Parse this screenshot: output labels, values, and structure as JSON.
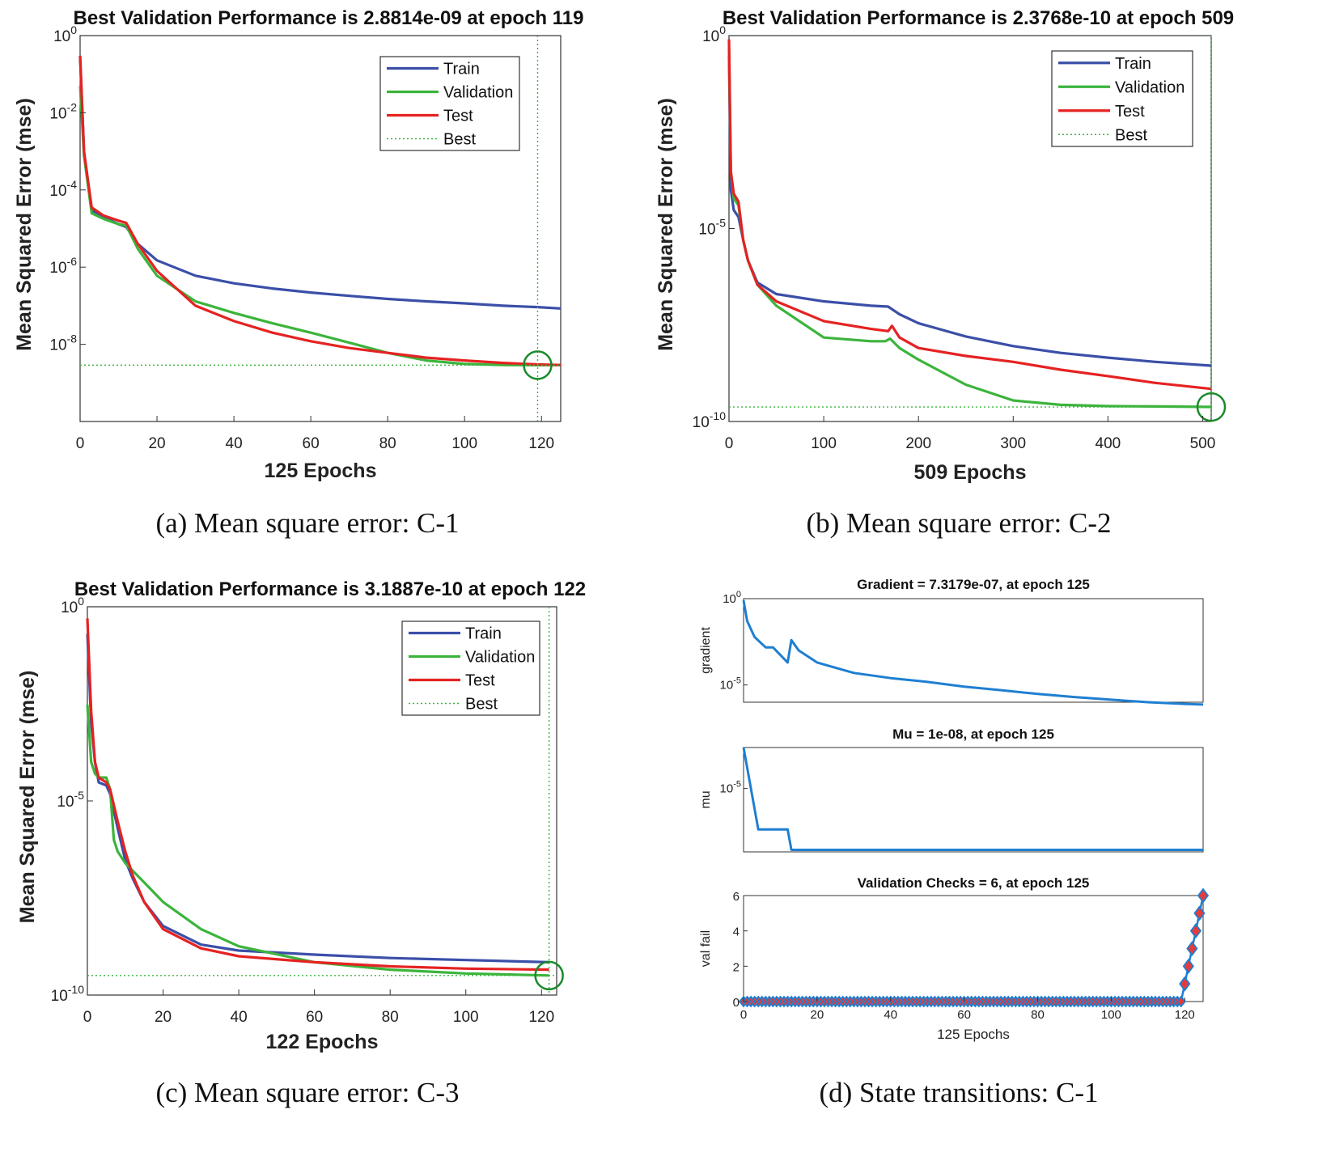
{
  "chart_data": [
    {
      "id": "a",
      "type": "line",
      "yscale": "log",
      "title": "Best Validation Performance is 2.8814e-09 at epoch 119",
      "xlabel": "125 Epochs",
      "ylabel": "Mean Squared Error  (mse)",
      "caption": "(a) Mean square error: C-1",
      "xlim": [
        0,
        125
      ],
      "ylim_exp": [
        -10,
        0
      ],
      "xticks": [
        0,
        20,
        40,
        60,
        80,
        100,
        120
      ],
      "yticks_exp": [
        -8,
        -6,
        -4,
        -2,
        0
      ],
      "legend": [
        "Train",
        "Validation",
        "Test",
        "Best"
      ],
      "series": [
        {
          "name": "Train",
          "color": "#3b4fa8",
          "x": [
            0,
            1,
            3,
            6,
            10,
            12,
            15,
            20,
            30,
            40,
            50,
            60,
            70,
            80,
            90,
            100,
            110,
            119,
            125
          ],
          "y": [
            0.3,
            0.001,
            3e-05,
            2e-05,
            1.3e-05,
            1.1e-05,
            4e-06,
            1.5e-06,
            6e-07,
            3.8e-07,
            2.8e-07,
            2.2e-07,
            1.8e-07,
            1.5e-07,
            1.3e-07,
            1.15e-07,
            1e-07,
            9.2e-08,
            8.5e-08
          ]
        },
        {
          "name": "Validation",
          "color": "#3cb43c",
          "x": [
            0,
            1,
            3,
            6,
            10,
            12,
            15,
            20,
            30,
            40,
            50,
            60,
            70,
            80,
            90,
            100,
            110,
            119,
            125
          ],
          "y": [
            0.05,
            0.0008,
            2.5e-05,
            1.8e-05,
            1.3e-05,
            1.2e-05,
            3e-06,
            6e-07,
            1.3e-07,
            6.5e-08,
            3.5e-08,
            2e-08,
            1.1e-08,
            6e-09,
            3.8e-09,
            3.1e-09,
            2.9e-09,
            2.88e-09,
            2.9e-09
          ]
        },
        {
          "name": "Test",
          "color": "#e52222",
          "x": [
            0,
            1,
            3,
            6,
            10,
            12,
            15,
            20,
            30,
            40,
            50,
            60,
            70,
            80,
            90,
            100,
            110,
            119,
            125
          ],
          "y": [
            0.3,
            0.001,
            3.5e-05,
            2.2e-05,
            1.6e-05,
            1.4e-05,
            4e-06,
            8e-07,
            1e-07,
            4e-08,
            2e-08,
            1.2e-08,
            8e-09,
            6e-09,
            4.5e-09,
            3.8e-09,
            3.3e-09,
            3e-09,
            2.9e-09
          ]
        }
      ],
      "best": {
        "epoch": 119,
        "value": 2.8814e-09
      }
    },
    {
      "id": "b",
      "type": "line",
      "yscale": "log",
      "title": "Best Validation Performance is 2.3768e-10 at epoch 509",
      "xlabel": "509 Epochs",
      "ylabel": "Mean Squared Error  (mse)",
      "caption": "(b) Mean square error: C-2",
      "xlim": [
        0,
        509
      ],
      "ylim_exp": [
        -10,
        0
      ],
      "xticks": [
        0,
        100,
        200,
        300,
        400,
        500
      ],
      "yticks_exp": [
        -10,
        -5,
        0
      ],
      "legend": [
        "Train",
        "Validation",
        "Test",
        "Best"
      ],
      "series": [
        {
          "name": "Train",
          "color": "#3b4fa8",
          "x": [
            0,
            2,
            5,
            10,
            15,
            20,
            30,
            50,
            100,
            150,
            168,
            180,
            200,
            250,
            300,
            350,
            400,
            450,
            509
          ],
          "y": [
            0.3,
            0.0001,
            3e-05,
            2e-05,
            5e-06,
            1.5e-06,
            4e-07,
            2e-07,
            1.3e-07,
            1e-07,
            9.5e-08,
            6e-08,
            3.5e-08,
            1.6e-08,
            9e-09,
            6e-09,
            4.5e-09,
            3.5e-09,
            2.8e-09
          ]
        },
        {
          "name": "Validation",
          "color": "#3cb43c",
          "x": [
            0,
            2,
            5,
            10,
            15,
            20,
            30,
            50,
            100,
            150,
            165,
            170,
            180,
            200,
            250,
            300,
            350,
            400,
            450,
            509
          ],
          "y": [
            0.5,
            0.0003,
            6e-05,
            4e-05,
            5e-06,
            1.5e-06,
            3.5e-07,
            1e-07,
            1.5e-08,
            1.2e-08,
            1.2e-08,
            1.4e-08,
            8e-09,
            4e-09,
            9e-10,
            3.5e-10,
            2.7e-10,
            2.5e-10,
            2.45e-10,
            2.38e-10
          ]
        },
        {
          "name": "Test",
          "color": "#e52222",
          "x": [
            0,
            2,
            5,
            10,
            15,
            20,
            30,
            50,
            100,
            150,
            168,
            172,
            180,
            200,
            250,
            300,
            350,
            400,
            450,
            509
          ],
          "y": [
            0.8,
            0.0003,
            8e-05,
            5e-05,
            5e-06,
            1.5e-06,
            3.5e-07,
            1.3e-07,
            4e-08,
            2.5e-08,
            2.2e-08,
            3e-08,
            1.5e-08,
            8e-09,
            5e-09,
            3.5e-09,
            2.2e-09,
            1.5e-09,
            1e-09,
            7e-10
          ]
        }
      ],
      "best": {
        "epoch": 509,
        "value": 2.3768e-10
      }
    },
    {
      "id": "c",
      "type": "line",
      "yscale": "log",
      "title": "Best Validation Performance is 3.1887e-10 at epoch 122",
      "xlabel": "122 Epochs",
      "ylabel": "Mean Squared Error  (mse)",
      "caption": "(c) Mean square error: C-3",
      "xlim": [
        0,
        124
      ],
      "ylim_exp": [
        -10,
        0
      ],
      "xticks": [
        0,
        20,
        40,
        60,
        80,
        100,
        120
      ],
      "yticks_exp": [
        -10,
        -5,
        0
      ],
      "legend": [
        "Train",
        "Validation",
        "Test",
        "Best"
      ],
      "series": [
        {
          "name": "Train",
          "color": "#3b4fa8",
          "x": [
            0,
            1,
            2,
            3,
            5,
            6,
            8,
            10,
            12,
            15,
            20,
            30,
            40,
            60,
            80,
            100,
            122
          ],
          "y": [
            0.2,
            0.001,
            0.0001,
            3e-05,
            2.5e-05,
            1.5e-05,
            2e-06,
            3e-07,
            1e-07,
            2.5e-08,
            6e-09,
            2e-09,
            1.4e-09,
            1.1e-09,
            9e-10,
            8e-10,
            7e-10
          ]
        },
        {
          "name": "Validation",
          "color": "#3cb43c",
          "x": [
            0,
            1,
            2,
            3,
            5,
            6,
            7,
            8,
            10,
            15,
            20,
            30,
            40,
            60,
            80,
            100,
            122
          ],
          "y": [
            0.003,
            0.0001,
            5e-05,
            4e-05,
            4e-05,
            2e-05,
            1e-06,
            5e-07,
            2.5e-07,
            8e-08,
            2.5e-08,
            5e-09,
            1.8e-09,
            7e-10,
            4.5e-10,
            3.6e-10,
            3.19e-10
          ]
        },
        {
          "name": "Test",
          "color": "#e52222",
          "x": [
            0,
            1,
            2,
            3,
            5,
            6,
            8,
            10,
            12,
            15,
            20,
            30,
            40,
            60,
            80,
            100,
            122
          ],
          "y": [
            0.5,
            0.002,
            0.0001,
            4e-05,
            3e-05,
            2e-05,
            3e-06,
            5e-07,
            1.2e-07,
            2.5e-08,
            5e-09,
            1.6e-09,
            1e-09,
            7e-10,
            5.5e-10,
            4.8e-10,
            4.5e-10
          ]
        }
      ],
      "best": {
        "epoch": 122,
        "value": 3.1887e-10
      }
    },
    {
      "id": "d",
      "type": "line",
      "title": "State transitions: C-1",
      "caption": "(d) State transitions: C-1",
      "xlabel": "125 Epochs",
      "xlim": [
        0,
        125
      ],
      "xticks": [
        0,
        20,
        40,
        60,
        80,
        100,
        120
      ],
      "subplots": [
        {
          "title": "Gradient = 7.3179e-07, at epoch 125",
          "ylabel": "gradient",
          "yscale": "log",
          "ylim_exp": [
            -6,
            0
          ],
          "yticks_exp": [
            -5,
            0
          ],
          "color": "#1f7fd1",
          "x": [
            0,
            1,
            3,
            6,
            8,
            12,
            13,
            15,
            20,
            30,
            40,
            50,
            60,
            70,
            80,
            90,
            100,
            110,
            120,
            125
          ],
          "y": [
            0.8,
            0.05,
            0.006,
            0.0015,
            0.0015,
            0.0002,
            0.004,
            0.001,
            0.0002,
            5e-05,
            2.5e-05,
            1.5e-05,
            8e-06,
            5e-06,
            3e-06,
            2e-06,
            1.4e-06,
            1e-06,
            8e-07,
            7.3179e-07
          ]
        },
        {
          "title": "Mu = 1e-08, at epoch 125",
          "ylabel": "mu",
          "yscale": "log",
          "ylim_exp": [
            -8.1,
            -3
          ],
          "yticks_exp": [
            -5
          ],
          "color": "#1f7fd1",
          "x": [
            0,
            4,
            12,
            13,
            125
          ],
          "y": [
            0.001,
            1e-07,
            1e-07,
            1e-08,
            1e-08
          ]
        },
        {
          "title": "Validation Checks = 6, at epoch 125",
          "ylabel": "val fail",
          "yscale": "linear",
          "ylim": [
            0,
            6
          ],
          "yticks": [
            0,
            2,
            4,
            6
          ],
          "color": "#1f7fd1",
          "marker_fill": "#e53b3b",
          "fail_epochs": [
            120,
            121,
            122,
            123,
            124,
            125
          ],
          "fail_values": [
            1,
            2,
            3,
            4,
            5,
            6
          ]
        }
      ]
    }
  ]
}
